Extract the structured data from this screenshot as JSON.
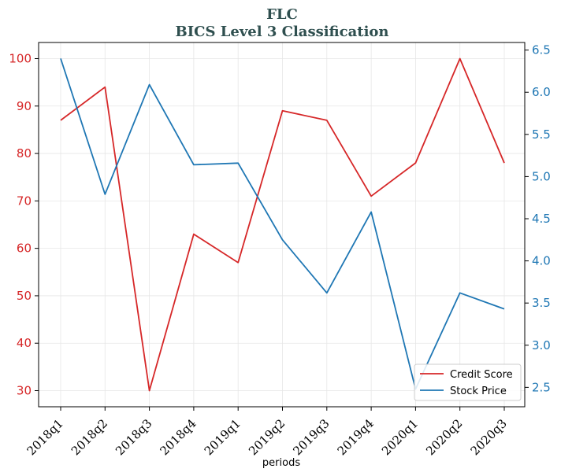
{
  "chart_data": {
    "type": "line",
    "title": "FLC",
    "subtitle": "BICS Level 3 Classification",
    "xlabel": "periods",
    "categories": [
      "2018q1",
      "2018q2",
      "2018q3",
      "2018q4",
      "2019q1",
      "2019q2",
      "2019q3",
      "2019q4",
      "2020q1",
      "2020q2",
      "2020q3"
    ],
    "y_left": {
      "ylim": [
        26.6,
        103.4
      ],
      "ticks": [
        30,
        40,
        50,
        60,
        70,
        80,
        90,
        100
      ],
      "color": "#d62728"
    },
    "y_right": {
      "ylim": [
        2.27,
        6.59
      ],
      "ticks": [
        "2.5",
        "3.0",
        "3.5",
        "4.0",
        "4.5",
        "5.0",
        "5.5",
        "6.0",
        "6.5"
      ],
      "color": "#1f77b4"
    },
    "series": [
      {
        "name": "Credit Score",
        "axis": "left",
        "color": "#d62728",
        "values": [
          87,
          94,
          30,
          63,
          57,
          89,
          87,
          71,
          78,
          100,
          78
        ]
      },
      {
        "name": "Stock Price",
        "axis": "right",
        "color": "#1f77b4",
        "values": [
          6.4,
          4.79,
          6.09,
          5.14,
          5.16,
          4.25,
          3.62,
          4.58,
          2.48,
          3.62,
          3.43
        ]
      }
    ],
    "grid": true,
    "legend": "bottom-right"
  }
}
